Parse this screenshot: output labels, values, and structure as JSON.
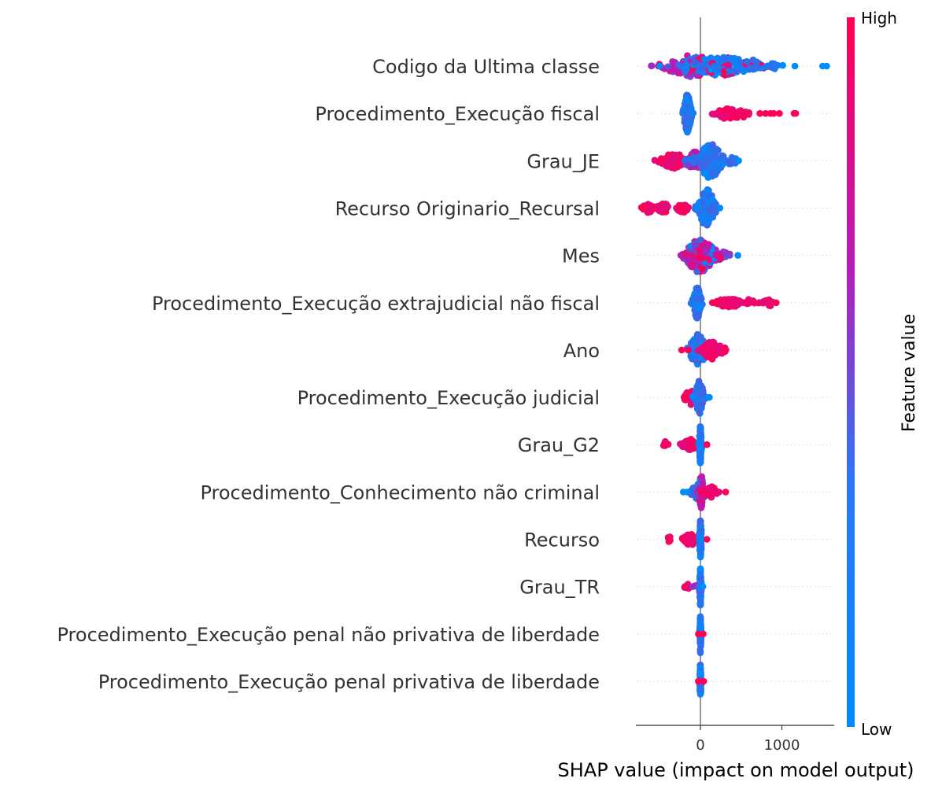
{
  "chart_data": {
    "type": "scatter",
    "subtype": "shap-beeswarm",
    "xlabel": "SHAP value (impact on model output)",
    "x_ticks": [
      0,
      1000
    ],
    "xlim": [
      -790,
      1660
    ],
    "colorbar": {
      "title": "Feature value",
      "high_label": "High",
      "low_label": "Low",
      "low_color": "#008bfb",
      "high_color": "#ff0052"
    },
    "features": [
      {
        "name": "Codigo da Ultima classe",
        "clusters": [
          {
            "c": -100,
            "s": 190,
            "n": 110,
            "hi": 0.45,
            "w": 14
          },
          {
            "c": 260,
            "s": 230,
            "n": 150,
            "hi": 0.2,
            "w": 12
          },
          {
            "c": 650,
            "s": 90,
            "n": 30,
            "hi": 0.1,
            "w": 8
          },
          {
            "c": 900,
            "s": 60,
            "n": 6,
            "hi": 0.0,
            "w": 4
          }
        ],
        "points": [
          [
            -500,
            0.0
          ],
          [
            1160,
            0.0
          ],
          [
            1500,
            0.0
          ],
          [
            1550,
            0.0
          ]
        ]
      },
      {
        "name": "Procedimento_Execução fiscal",
        "clusters": [
          {
            "c": -160,
            "s": 28,
            "n": 150,
            "hi": 0.0,
            "w": 24
          },
          {
            "c": 350,
            "s": 120,
            "n": 45,
            "hi": 1.0,
            "w": 7
          },
          {
            "c": 520,
            "s": 40,
            "n": 12,
            "hi": 1.0,
            "w": 5
          }
        ],
        "points": [
          [
            730,
            1.0
          ],
          [
            800,
            1.0
          ],
          [
            860,
            1.0
          ],
          [
            900,
            1.0
          ],
          [
            970,
            1.0
          ],
          [
            1150,
            1.0
          ],
          [
            1170,
            1.0
          ]
        ]
      },
      {
        "name": "Grau_JE",
        "clusters": [
          {
            "c": -330,
            "s": 90,
            "n": 75,
            "hi": 1.0,
            "w": 10
          },
          {
            "c": -80,
            "s": 70,
            "n": 40,
            "hi": 0.7,
            "w": 12
          },
          {
            "c": 120,
            "s": 90,
            "n": 100,
            "hi": 0.0,
            "w": 22
          },
          {
            "c": 380,
            "s": 60,
            "n": 14,
            "hi": 0.0,
            "w": 5
          }
        ],
        "points": [
          [
            -490,
            1.0
          ],
          [
            470,
            0.0
          ]
        ]
      },
      {
        "name": "Recurso Originario_Recursal",
        "clusters": [
          {
            "c": -640,
            "s": 40,
            "n": 30,
            "hi": 1.0,
            "w": 6
          },
          {
            "c": -450,
            "s": 50,
            "n": 30,
            "hi": 1.0,
            "w": 6
          },
          {
            "c": -220,
            "s": 40,
            "n": 30,
            "hi": 1.0,
            "w": 6
          },
          {
            "c": 80,
            "s": 60,
            "n": 100,
            "hi": 0.0,
            "w": 24
          }
        ],
        "points": [
          [
            -700,
            1.0
          ],
          [
            240,
            0.0
          ]
        ]
      },
      {
        "name": "Mes",
        "clusters": [
          {
            "c": 0,
            "s": 110,
            "n": 180,
            "hi": 0.5,
            "w": 22
          },
          {
            "c": 250,
            "s": 70,
            "n": 20,
            "hi": 0.25,
            "w": 6
          }
        ],
        "points": [
          [
            -240,
            0.55
          ],
          [
            360,
            0.3
          ],
          [
            460,
            0.0
          ]
        ]
      },
      {
        "name": "Procedimento_Execução extrajudicial não fiscal",
        "clusters": [
          {
            "c": -40,
            "s": 28,
            "n": 110,
            "hi": 0.0,
            "w": 20
          },
          {
            "c": 350,
            "s": 80,
            "n": 45,
            "hi": 1.0,
            "w": 7
          },
          {
            "c": 620,
            "s": 50,
            "n": 14,
            "hi": 1.0,
            "w": 5
          },
          {
            "c": 820,
            "s": 60,
            "n": 10,
            "hi": 1.0,
            "w": 5
          }
        ],
        "points": [
          [
            170,
            1.0
          ],
          [
            930,
            1.0
          ]
        ]
      },
      {
        "name": "Ano",
        "clusters": [
          {
            "c": -30,
            "s": 60,
            "n": 90,
            "hi": 0.0,
            "w": 20
          },
          {
            "c": 130,
            "s": 60,
            "n": 55,
            "hi": 1.0,
            "w": 12
          },
          {
            "c": 260,
            "s": 40,
            "n": 18,
            "hi": 1.0,
            "w": 6
          }
        ],
        "points": [
          [
            -230,
            1.0
          ],
          [
            -150,
            1.0
          ],
          [
            290,
            1.0
          ]
        ]
      },
      {
        "name": "Procedimento_Execução judicial",
        "clusters": [
          {
            "c": -110,
            "s": 50,
            "n": 30,
            "hi": 1.0,
            "w": 10
          },
          {
            "c": -10,
            "s": 30,
            "n": 90,
            "hi": 0.0,
            "w": 22
          }
        ],
        "points": [
          [
            -200,
            1.0
          ],
          [
            110,
            0.0
          ]
        ]
      },
      {
        "name": "Grau_G2",
        "clusters": [
          {
            "c": -430,
            "s": 15,
            "n": 10,
            "hi": 1.0,
            "w": 4
          },
          {
            "c": -130,
            "s": 55,
            "n": 45,
            "hi": 1.0,
            "w": 8
          },
          {
            "c": 0,
            "s": 8,
            "n": 90,
            "hi": 0.0,
            "w": 24
          }
        ],
        "points": [
          [
            80,
            1.0
          ]
        ]
      },
      {
        "name": "Procedimento_Conhecimento não criminal",
        "clusters": [
          {
            "c": -20,
            "s": 60,
            "n": 50,
            "hi": 0.0,
            "w": 10
          },
          {
            "c": 10,
            "s": 15,
            "n": 60,
            "hi": 0.5,
            "w": 22
          },
          {
            "c": 120,
            "s": 50,
            "n": 25,
            "hi": 1.0,
            "w": 8
          }
        ],
        "points": [
          [
            -210,
            0.0
          ],
          [
            310,
            1.0
          ],
          [
            -160,
            0.0
          ]
        ]
      },
      {
        "name": "Recurso",
        "clusters": [
          {
            "c": -380,
            "s": 15,
            "n": 10,
            "hi": 1.0,
            "w": 4
          },
          {
            "c": -120,
            "s": 50,
            "n": 45,
            "hi": 1.0,
            "w": 8
          },
          {
            "c": 0,
            "s": 8,
            "n": 90,
            "hi": 0.0,
            "w": 24
          }
        ],
        "points": [
          [
            80,
            1.0
          ]
        ]
      },
      {
        "name": "Grau_TR",
        "clusters": [
          {
            "c": -160,
            "s": 20,
            "n": 8,
            "hi": 1.0,
            "w": 4
          },
          {
            "c": -30,
            "s": 25,
            "n": 10,
            "hi": 0.5,
            "w": 4
          },
          {
            "c": 0,
            "s": 6,
            "n": 90,
            "hi": 0.0,
            "w": 24
          }
        ],
        "points": [
          [
            30,
            0.0
          ]
        ]
      },
      {
        "name": "Procedimento_Execução penal não privativa de liberdade",
        "clusters": [
          {
            "c": 0,
            "s": 5,
            "n": 70,
            "hi": 0.0,
            "w": 24
          }
        ],
        "points": [
          [
            35,
            1.0
          ],
          [
            -25,
            1.0
          ]
        ]
      },
      {
        "name": "Procedimento_Execução penal privativa de liberdade",
        "clusters": [
          {
            "c": 0,
            "s": 5,
            "n": 70,
            "hi": 0.0,
            "w": 24
          }
        ],
        "points": [
          [
            40,
            1.0
          ],
          [
            -25,
            1.0
          ]
        ]
      }
    ]
  }
}
